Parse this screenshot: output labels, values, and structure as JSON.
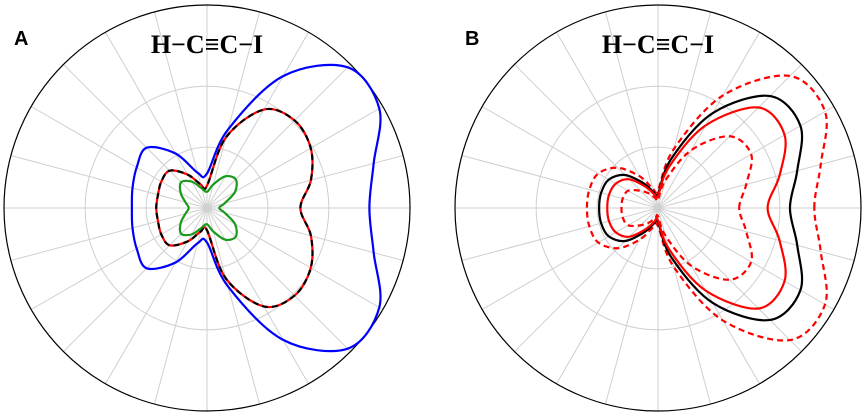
{
  "chart_data": [
    {
      "type": "polar",
      "panel": "A",
      "title": "H−C≡C−I",
      "theta": [
        0,
        15,
        30,
        45,
        60,
        75,
        90,
        105,
        120,
        135,
        150,
        165,
        180,
        195,
        210,
        225,
        240,
        255,
        270,
        285,
        300,
        315,
        330,
        345
      ],
      "rlim": [
        0,
        1
      ],
      "rticks": [
        0.3,
        0.6
      ],
      "grid": true,
      "series": [
        {
          "color": "#0000ff",
          "dash": false,
          "values": [
            0.8,
            0.85,
            0.98,
            0.98,
            0.75,
            0.4,
            0.17,
            0.18,
            0.31,
            0.42,
            0.4,
            0.38,
            0.37,
            0.38,
            0.4,
            0.42,
            0.31,
            0.18,
            0.17,
            0.4,
            0.75,
            0.98,
            0.98,
            0.85
          ]
        },
        {
          "color": "#ff0000",
          "dash": false,
          "values": [
            0.46,
            0.53,
            0.59,
            0.61,
            0.56,
            0.36,
            0.11,
            0.12,
            0.19,
            0.26,
            0.26,
            0.25,
            0.25,
            0.25,
            0.26,
            0.26,
            0.19,
            0.12,
            0.11,
            0.36,
            0.56,
            0.61,
            0.59,
            0.53
          ]
        },
        {
          "color": "#000000",
          "dash": true,
          "values": [
            0.46,
            0.53,
            0.59,
            0.61,
            0.56,
            0.36,
            0.11,
            0.12,
            0.19,
            0.26,
            0.26,
            0.25,
            0.25,
            0.25,
            0.26,
            0.26,
            0.19,
            0.12,
            0.11,
            0.36,
            0.56,
            0.61,
            0.59,
            0.53
          ]
        },
        {
          "color": "#1a9a1a",
          "dash": false,
          "values": [
            0.06,
            0.09,
            0.16,
            0.2,
            0.18,
            0.12,
            0.08,
            0.1,
            0.15,
            0.18,
            0.15,
            0.11,
            0.09,
            0.11,
            0.15,
            0.18,
            0.15,
            0.1,
            0.08,
            0.12,
            0.18,
            0.2,
            0.16,
            0.09
          ]
        }
      ]
    },
    {
      "type": "polar",
      "panel": "B",
      "title": "H−C≡C−I",
      "theta": [
        0,
        15,
        30,
        45,
        60,
        75,
        90,
        105,
        120,
        135,
        150,
        165,
        180,
        195,
        210,
        225,
        240,
        255,
        270,
        285,
        300,
        315,
        330,
        345
      ],
      "rlim": [
        0,
        1
      ],
      "rticks": [
        0.3,
        0.6
      ],
      "grid": true,
      "series": [
        {
          "color": "#ff0000",
          "dash": true,
          "values": [
            0.77,
            0.83,
            0.95,
            0.92,
            0.64,
            0.3,
            0.09,
            0.1,
            0.18,
            0.28,
            0.34,
            0.35,
            0.35,
            0.35,
            0.34,
            0.28,
            0.18,
            0.1,
            0.09,
            0.3,
            0.64,
            0.92,
            0.95,
            0.83
          ]
        },
        {
          "color": "#ff0000",
          "dash": true,
          "values": [
            0.4,
            0.45,
            0.53,
            0.5,
            0.33,
            0.14,
            0.04,
            0.05,
            0.08,
            0.12,
            0.17,
            0.18,
            0.18,
            0.18,
            0.17,
            0.12,
            0.08,
            0.05,
            0.04,
            0.14,
            0.33,
            0.5,
            0.53,
            0.45
          ]
        },
        {
          "color": "#000000",
          "dash": false,
          "values": [
            0.65,
            0.71,
            0.81,
            0.78,
            0.54,
            0.25,
            0.07,
            0.08,
            0.14,
            0.23,
            0.28,
            0.29,
            0.29,
            0.29,
            0.28,
            0.23,
            0.14,
            0.08,
            0.07,
            0.25,
            0.54,
            0.78,
            0.81,
            0.71
          ]
        },
        {
          "color": "#ff0000",
          "dash": false,
          "values": [
            0.54,
            0.62,
            0.72,
            0.7,
            0.47,
            0.21,
            0.06,
            0.07,
            0.12,
            0.2,
            0.24,
            0.25,
            0.25,
            0.25,
            0.24,
            0.2,
            0.12,
            0.07,
            0.06,
            0.21,
            0.47,
            0.7,
            0.72,
            0.62
          ]
        }
      ]
    }
  ]
}
